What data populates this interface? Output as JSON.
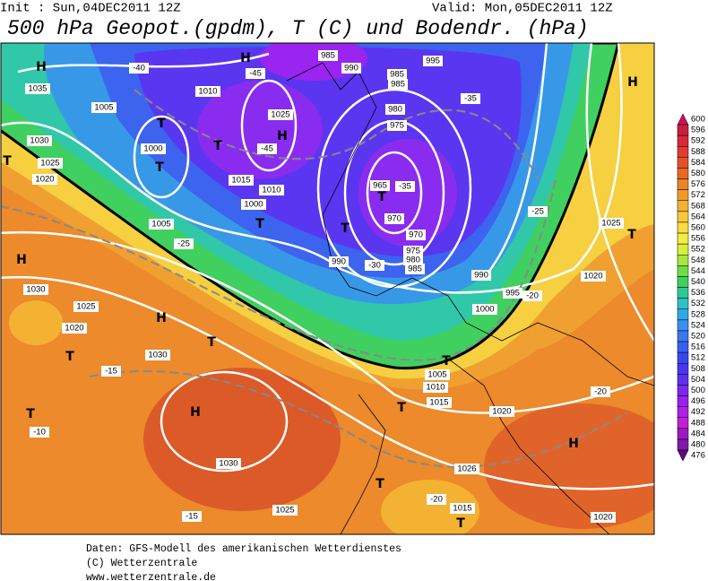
{
  "header": {
    "init": "Init : Sun,04DEC2011 12Z",
    "valid": "Valid: Mon,05DEC2011 12Z",
    "title": "500 hPa Geopot.(gpdm), T (C) und Bodendr. (hPa)"
  },
  "map": {
    "highs_lows": [
      "H",
      "H",
      "H",
      "H",
      "H",
      "H",
      "H",
      "H",
      "T",
      "T",
      "T",
      "T",
      "T",
      "T",
      "T",
      "T",
      "T",
      "T",
      "T",
      "T",
      "T",
      "T",
      "T"
    ],
    "isobar_labels": [
      "1035",
      "1030",
      "1025",
      "1020",
      "1005",
      "1000",
      "1010",
      "1025",
      "1015",
      "1010",
      "1000",
      "1005",
      "985",
      "990",
      "995",
      "985",
      "985",
      "980",
      "975",
      "965",
      "970",
      "970",
      "975",
      "980",
      "985",
      "990",
      "990",
      "995",
      "1000",
      "1005",
      "1010",
      "1015",
      "1020",
      "1025",
      "1020",
      "1030",
      "1025",
      "1020",
      "1030",
      "1030",
      "1025",
      "1026",
      "1015",
      "1020"
    ],
    "temperature_labels": [
      "-40",
      "-45",
      "-45",
      "-25",
      "-15",
      "-10",
      "-15",
      "-20",
      "-20",
      "-25",
      "-35",
      "-30",
      "-35",
      "-20"
    ]
  },
  "colorbar": {
    "labels": [
      "600",
      "596",
      "592",
      "588",
      "584",
      "580",
      "576",
      "572",
      "568",
      "564",
      "560",
      "556",
      "552",
      "548",
      "544",
      "540",
      "536",
      "532",
      "528",
      "524",
      "520",
      "516",
      "512",
      "508",
      "504",
      "500",
      "496",
      "492",
      "488",
      "484",
      "480",
      "476"
    ],
    "colors": [
      "#d0105a",
      "#c8203c",
      "#d8283a",
      "#e03c30",
      "#e65026",
      "#ea6a24",
      "#ee8228",
      "#f19a2c",
      "#f4b232",
      "#f6c83a",
      "#f8dc40",
      "#f4ec44",
      "#d8ee3c",
      "#a8e640",
      "#70dc48",
      "#40d060",
      "#30c898",
      "#30c0c8",
      "#30a8e8",
      "#3890f0",
      "#3878f0",
      "#3860f0",
      "#3848f0",
      "#4838f0",
      "#6030f0",
      "#7a28f0",
      "#9a20f0",
      "#b020e8",
      "#c020d8",
      "#a018c0",
      "#801aa8",
      "#600a80"
    ]
  },
  "footer": [
    "Daten: GFS-Modell des amerikanischen Wetterdienstes",
    "(C) Wetterzentrale",
    "www.wetterzentrale.de"
  ]
}
